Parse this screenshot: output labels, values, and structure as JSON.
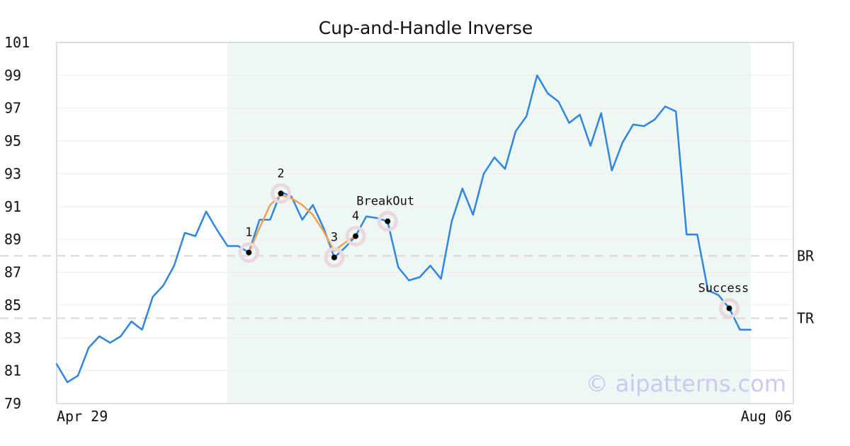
{
  "chart_data": {
    "type": "line",
    "title": "Cup-and-Handle Inverse",
    "xlabel": "",
    "ylabel": "",
    "ylim": [
      79,
      101
    ],
    "yticks": [
      79,
      81,
      83,
      85,
      87,
      89,
      91,
      93,
      95,
      97,
      99,
      101
    ],
    "xtick_labels": [
      "Apr 29",
      "Aug 06"
    ],
    "grid": true,
    "series": [
      {
        "color": "#2e86de",
        "x": [
          0,
          1,
          2,
          3,
          4,
          5,
          6,
          7,
          8,
          9,
          10,
          11,
          12,
          13,
          14,
          15,
          16,
          17,
          18,
          19,
          20,
          21,
          22,
          23,
          24,
          25,
          26,
          27,
          28,
          29,
          30,
          31,
          32,
          33,
          34,
          35,
          36,
          37,
          38,
          39,
          40,
          41,
          42,
          43,
          44,
          45,
          46,
          47,
          48,
          49,
          50,
          51,
          52,
          53,
          54,
          55,
          56,
          57,
          58,
          59,
          60,
          61,
          62,
          63,
          64,
          65,
          66,
          67,
          68,
          69
        ],
        "values": [
          81.4,
          80.3,
          80.7,
          82.4,
          83.1,
          82.7,
          83.1,
          84.0,
          83.5,
          85.5,
          86.2,
          87.4,
          89.4,
          89.2,
          90.7,
          89.6,
          88.6,
          88.6,
          88.2,
          90.2,
          90.2,
          91.9,
          91.6,
          90.2,
          91.1,
          89.7,
          87.9,
          88.5,
          89.2,
          90.4,
          90.3,
          90.1,
          87.3,
          86.5,
          86.7,
          87.4,
          86.6,
          90.1,
          92.1,
          90.5,
          93.0,
          94.0,
          93.3,
          95.6,
          96.5,
          99.0,
          97.9,
          97.4,
          96.1,
          96.6,
          94.7,
          96.7,
          93.2,
          94.9,
          96.0,
          95.9,
          96.3,
          97.1,
          96.8,
          89.3,
          89.3,
          85.9,
          85.6,
          84.8,
          83.5,
          83.5,
          null,
          null,
          null,
          null
        ]
      },
      {
        "color": "#f0a050",
        "x": [
          18,
          19,
          20,
          21,
          22,
          23,
          24,
          25,
          26,
          27,
          28
        ],
        "values": [
          88.2,
          89.7,
          91.1,
          91.7,
          91.5,
          91.1,
          90.5,
          89.5,
          88.3,
          88.8,
          89.2
        ]
      }
    ],
    "highlight_region": {
      "x_start": 16,
      "x_end": 65
    },
    "reference_lines": [
      {
        "label": "BR",
        "y": 88.0
      },
      {
        "label": "TR",
        "y": 84.2
      }
    ],
    "points": [
      {
        "label": "1",
        "x": 18,
        "y": 88.2
      },
      {
        "label": "2",
        "x": 21,
        "y": 91.8
      },
      {
        "label": "3",
        "x": 26,
        "y": 87.9
      },
      {
        "label": "4",
        "x": 28,
        "y": 89.2
      },
      {
        "label": "BreakOut",
        "x": 31,
        "y": 90.1
      },
      {
        "label": "Success",
        "x": 63,
        "y": 84.8
      }
    ],
    "watermark": "© aipatterns.com"
  }
}
